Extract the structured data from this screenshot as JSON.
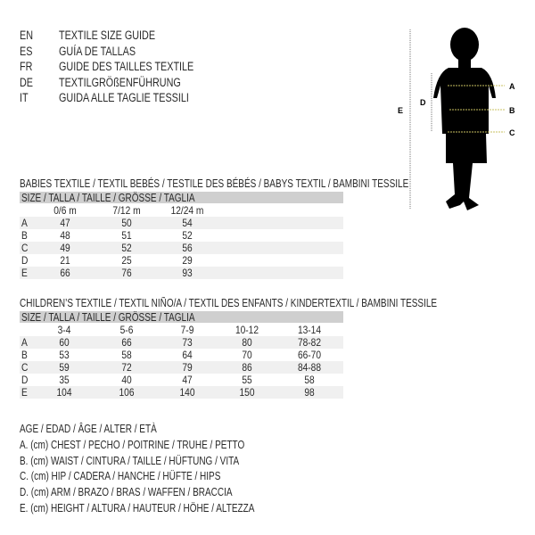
{
  "languages": [
    {
      "code": "EN",
      "text": "TEXTILE SIZE GUIDE"
    },
    {
      "code": "ES",
      "text": "GUÍA DE TALLAS"
    },
    {
      "code": "FR",
      "text": "GUIDE DES TAILLES TEXTILE"
    },
    {
      "code": "DE",
      "text": "TEXTILGRÖßENFÜHRUNG"
    },
    {
      "code": "IT",
      "text": "GUIDA ALLE TAGLIE TESSILI"
    }
  ],
  "figure": {
    "labels": {
      "a": "A",
      "b": "B",
      "c": "C",
      "d": "D",
      "e": "E"
    }
  },
  "babies": {
    "title": "BABIES TEXTILE / TEXTIL BEBÉS / TESTILE DES BÉBÉS / BABYS TEXTIL / BAMBINI TESSILE",
    "header": "SIZE / TALLA / TAILLE / GRÖSSE / TAGLIA",
    "columns": [
      "0/6 m",
      "7/12 m",
      "12/24 m"
    ],
    "rows": [
      {
        "label": "A",
        "values": [
          "47",
          "50",
          "54"
        ]
      },
      {
        "label": "B",
        "values": [
          "48",
          "51",
          "52"
        ]
      },
      {
        "label": "C",
        "values": [
          "49",
          "52",
          "56"
        ]
      },
      {
        "label": "D",
        "values": [
          "21",
          "25",
          "29"
        ]
      },
      {
        "label": "E",
        "values": [
          "66",
          "76",
          "93"
        ]
      }
    ]
  },
  "children": {
    "title": "CHILDREN’S TEXTILE / TEXTIL NIÑO/A / TEXTIL DES ENFANTS / KINDERTEXTIL / BAMBINI TESSILE",
    "header": "SIZE / TALLA / TAILLE / GRÖSSE / TAGLIA",
    "columns": [
      "3-4",
      "5-6",
      "7-9",
      "10-12",
      "13-14"
    ],
    "rows": [
      {
        "label": "A",
        "values": [
          "60",
          "66",
          "73",
          "80",
          "78-82"
        ]
      },
      {
        "label": "B",
        "values": [
          "53",
          "58",
          "64",
          "70",
          "66-70"
        ]
      },
      {
        "label": "C",
        "values": [
          "59",
          "72",
          "79",
          "86",
          "84-88"
        ]
      },
      {
        "label": "D",
        "values": [
          "35",
          "40",
          "47",
          "55",
          "58"
        ]
      },
      {
        "label": "E",
        "values": [
          "104",
          "106",
          "140",
          "150",
          "98"
        ]
      }
    ]
  },
  "legend": [
    "AGE / EDAD / ÂGE / ALTER / ETÀ",
    "A. (cm) CHEST / PECHO / POITRINE / TRUHE / PETTO",
    "B. (cm) WAIST / CINTURA / TAILLE / HÜFTUNG / VITA",
    "C. (cm) HIP / CADERA / HANCHE / HÜFTE / HIPS",
    "D. (cm) ARM / BRAZO / BRAS / WAFFEN / BRACCIA",
    "E. (cm) HEIGHT / ALTURA / HAUTEUR / HÖHE / ALTEZZA"
  ]
}
